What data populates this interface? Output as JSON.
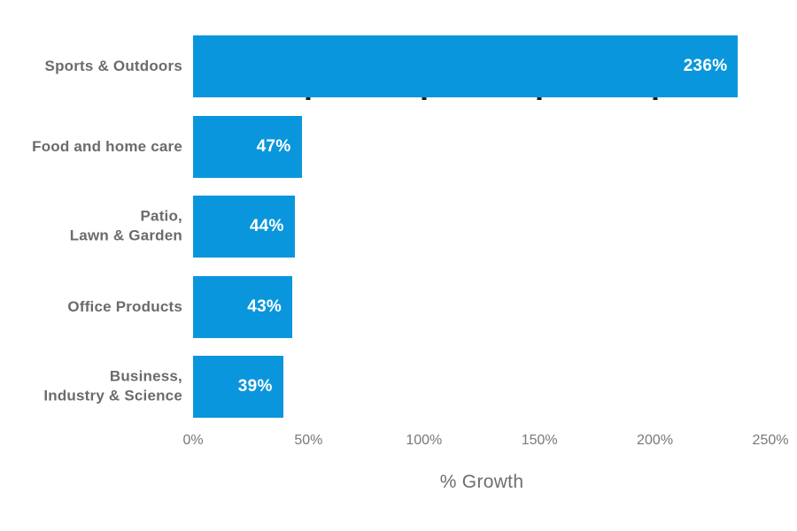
{
  "chart_data": {
    "type": "bar",
    "orientation": "horizontal",
    "title": "",
    "categories": [
      "Sports & Outdoors",
      "Food and home care",
      "Patio,\nLawn & Garden",
      "Office Products",
      "Business,\nIndustry & Science"
    ],
    "values": [
      236,
      47,
      44,
      43,
      39
    ],
    "value_labels": [
      "236%",
      "47%",
      "44%",
      "43%",
      "39%"
    ],
    "xlabel": "% Growth",
    "ylabel": "",
    "xlim": [
      0,
      250
    ],
    "xticks": [
      0,
      50,
      100,
      150,
      200,
      250
    ],
    "xtick_labels": [
      "0%",
      "50%",
      "100%",
      "150%",
      "200%",
      "250%"
    ],
    "grid": false,
    "legend": false,
    "colors": {
      "bar": "#0A96DC",
      "bar_value_text": "#FFFFFF",
      "category_label": "#6B6B6B",
      "tick_label": "#77787B",
      "axis_title": "#6D6E71",
      "background": "#FFFFFF",
      "notch": "#1F1F1F"
    }
  }
}
